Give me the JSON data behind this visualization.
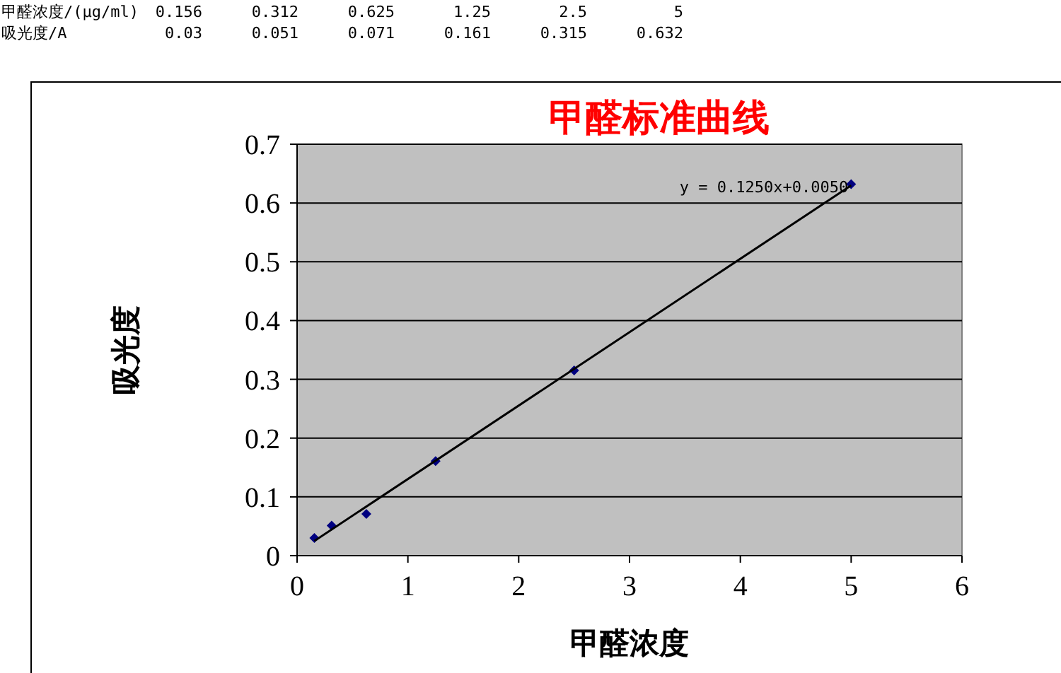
{
  "chart_data": [
    {
      "type": "other",
      "xlabel": "甲醛浓度/(μg/ml)",
      "categories": [
        "0.156",
        "0.312",
        "0.625",
        "1.25",
        "2.5",
        "5"
      ],
      "series": [
        {
          "name": "吸光度/A",
          "values": [
            0.03,
            0.051,
            0.071,
            0.161,
            0.315,
            0.632
          ]
        }
      ],
      "data_labels": true
    },
    {
      "type": "scatter",
      "title": "甲醛标准曲线",
      "xlabel": "甲醛浓度",
      "ylabel": "吸光度",
      "x": [
        0.156,
        0.312,
        0.625,
        1.25,
        2.5,
        5
      ],
      "series": [
        {
          "type": "scatter",
          "color": "#000080",
          "values": [
            0.03,
            0.051,
            0.071,
            0.161,
            0.315,
            0.632
          ]
        },
        {
          "type": "line",
          "color": "#000000",
          "marker": "none",
          "x": [
            0.156,
            5
          ],
          "values": [
            0.025,
            0.63
          ]
        }
      ],
      "xlim": [
        0,
        6
      ],
      "xticks": [
        0,
        1,
        2,
        3,
        4,
        5,
        6
      ],
      "ylim": [
        0,
        0.7
      ],
      "yticks": [
        0,
        0.1,
        0.2,
        0.3,
        0.4,
        0.5,
        0.6,
        0.7
      ],
      "grid": "y",
      "marker": "diamond",
      "annotations": [
        "y = 0.1250x+0.0050"
      ]
    }
  ]
}
